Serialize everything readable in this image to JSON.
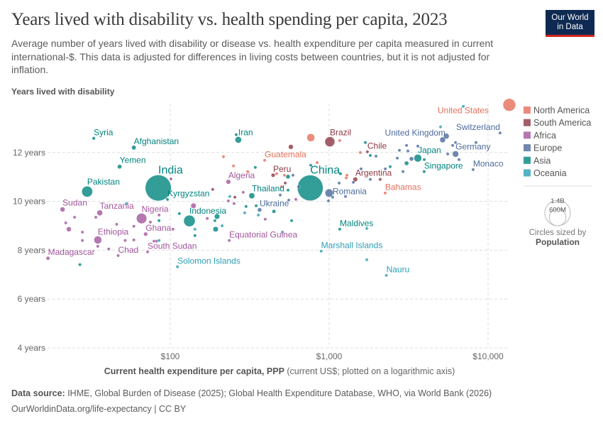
{
  "header": {
    "title": "Years lived with disability vs. health spending per capita, 2023",
    "subtitle": "Average number of years lived with disability or disease vs. health expenditure per capita measured in current international-$. This data is adjusted for differences in living costs between countries, but it is not adjusted for inflation.",
    "logo_line1": "Our World",
    "logo_line2": "in Data"
  },
  "footer": {
    "source_label": "Data source:",
    "source_text": " IHME, Global Burden of Disease (2025); Global Health Expenditure Database, WHO, via World Bank (2026)",
    "url_license": "OurWorldinData.org/life-expectancy | CC BY"
  },
  "chart_data": {
    "type": "scatter",
    "title": "Years lived with disability vs. health spending per capita, 2023",
    "ylabel": "Years lived with disability",
    "xlabel_bold": "Current health expenditure per capita, PPP",
    "xlabel_rest": " (current US$; plotted on a logarithmic axis)",
    "x_scale": "log",
    "xlim": [
      15,
      13500
    ],
    "ylim": [
      4,
      14
    ],
    "grid": true,
    "x_ticks": [
      {
        "value": 100,
        "label": "$100"
      },
      {
        "value": 1000,
        "label": "$1,000"
      },
      {
        "value": 10000,
        "label": "$10,000"
      }
    ],
    "y_ticks": [
      {
        "value": 4,
        "label": "4 years"
      },
      {
        "value": 6,
        "label": "6 years"
      },
      {
        "value": 8,
        "label": "8 years"
      },
      {
        "value": 10,
        "label": "10 years"
      },
      {
        "value": 12,
        "label": "12 years"
      }
    ],
    "legend_position": "right",
    "legend": [
      {
        "key": "NA",
        "label": "North America",
        "color": "#E56E5A"
      },
      {
        "key": "SA",
        "label": "South America",
        "color": "#8C3743"
      },
      {
        "key": "AF",
        "label": "Africa",
        "color": "#A2559C"
      },
      {
        "key": "EU",
        "label": "Europe",
        "color": "#4C6A9C"
      },
      {
        "key": "AS",
        "label": "Asia",
        "color": "#00847E"
      },
      {
        "key": "OC",
        "label": "Oceania",
        "color": "#2C9EB5"
      }
    ],
    "size_legend": {
      "large": "1.4B",
      "small": "600M",
      "caption": "Circles sized by",
      "variable": "Population",
      "large_value_m": 1400,
      "small_value_m": 600
    },
    "columns": [
      "entity",
      "region",
      "x",
      "y",
      "population_m"
    ],
    "points": [
      [
        "United States",
        "NA",
        13600,
        13.95,
        340
      ],
      [
        "Syria",
        "AS",
        33,
        12.58,
        23
      ],
      [
        "Afghanistan",
        "AS",
        59,
        12.2,
        42
      ],
      [
        "Yemen",
        "AS",
        48,
        11.42,
        40
      ],
      [
        "Pakistan",
        "AS",
        30,
        10.4,
        250
      ],
      [
        "India",
        "AS",
        84,
        10.55,
        1440
      ],
      [
        "Kyrgyzstan",
        "AS",
        96,
        10.08,
        7
      ],
      [
        "Sudan",
        "AF",
        21,
        9.67,
        50
      ],
      [
        "Tanzania",
        "AF",
        36,
        9.53,
        68
      ],
      [
        "Nigeria",
        "AF",
        66,
        9.3,
        228
      ],
      [
        "Ethiopia",
        "AF",
        35,
        8.42,
        128
      ],
      [
        "Ghana",
        "AF",
        70,
        8.66,
        34
      ],
      [
        "Chad",
        "AF",
        47,
        7.78,
        19
      ],
      [
        "South Sudan",
        "AF",
        72,
        7.93,
        11
      ],
      [
        "Madagascar",
        "AF",
        17,
        7.67,
        31
      ],
      [
        "Solomon Islands",
        "OC",
        111,
        7.32,
        0.8
      ],
      [
        "Indonesia",
        "AS",
        132,
        9.2,
        280
      ],
      [
        "Iran",
        "AS",
        268,
        12.52,
        90
      ],
      [
        "Algeria",
        "AF",
        232,
        10.8,
        46
      ],
      [
        "Thailand",
        "AS",
        326,
        10.23,
        72
      ],
      [
        "Ukraine",
        "EU",
        365,
        9.65,
        38
      ],
      [
        "Equatorial Guinea",
        "AF",
        235,
        8.4,
        1.9
      ],
      [
        "Guatemala",
        "NA",
        393,
        11.68,
        18
      ],
      [
        "Peru",
        "SA",
        444,
        11.07,
        34
      ],
      [
        "China",
        "AS",
        760,
        10.55,
        1410
      ],
      [
        "Brazil",
        "SA",
        1010,
        12.44,
        211
      ],
      [
        "Chile",
        "SA",
        1740,
        12.03,
        20
      ],
      [
        "Argentina",
        "SA",
        1460,
        10.9,
        46
      ],
      [
        "Romania",
        "EU",
        1052,
        10.17,
        19
      ],
      [
        "Bahamas",
        "NA",
        2250,
        10.34,
        0.4
      ],
      [
        "Maldives",
        "AS",
        1166,
        8.86,
        0.5
      ],
      [
        "Marshall Islands",
        "OC",
        890,
        7.96,
        0.04
      ],
      [
        "Nauru",
        "OC",
        2290,
        6.97,
        0.01
      ],
      [
        "United Kingdom",
        "EU",
        5176,
        12.52,
        69
      ],
      [
        "Switzerland",
        "EU",
        11900,
        12.8,
        9
      ],
      [
        "Germany",
        "EU",
        6240,
        11.94,
        84
      ],
      [
        "Japan",
        "AS",
        3614,
        11.77,
        124
      ],
      [
        "Singapore",
        "AS",
        3960,
        11.22,
        6
      ],
      [
        "Monaco",
        "EU",
        8050,
        11.3,
        0.04
      ],
      [
        "",
        "AF",
        101,
        10.92,
        10
      ],
      [
        "",
        "SA",
        185,
        10.49,
        12
      ],
      [
        "",
        "NA",
        216,
        11.83,
        5
      ],
      [
        "",
        "NA",
        250,
        11.45,
        5
      ],
      [
        "",
        "NA",
        307,
        11.22,
        5
      ],
      [
        "",
        "AS",
        343,
        11.39,
        5
      ],
      [
        "",
        "SA",
        574,
        12.23,
        50
      ],
      [
        "",
        "NA",
        467,
        11.13,
        5
      ],
      [
        "",
        "NA",
        523,
        11.07,
        5
      ],
      [
        "",
        "EU",
        592,
        11.07,
        5
      ],
      [
        "",
        "AS",
        551,
        11.01,
        40
      ],
      [
        "",
        "SA",
        529,
        10.75,
        5
      ],
      [
        "",
        "NA",
        502,
        10.6,
        5
      ],
      [
        "",
        "OC",
        237,
        10.2,
        3
      ],
      [
        "",
        "SA",
        255,
        10.17,
        5
      ],
      [
        "",
        "AF",
        288,
        10.37,
        5
      ],
      [
        "",
        "AF",
        232,
        10.02,
        20
      ],
      [
        "",
        "AF",
        252,
        9.91,
        5
      ],
      [
        "",
        "AS",
        551,
        10.46,
        5
      ],
      [
        "",
        "EU",
        492,
        10.26,
        5
      ],
      [
        "",
        "EU",
        557,
        10.05,
        5
      ],
      [
        "",
        "AF",
        617,
        10.08,
        5
      ],
      [
        "",
        "AS",
        300,
        9.79,
        5
      ],
      [
        "",
        "AS",
        347,
        9.82,
        5
      ],
      [
        "",
        "OC",
        294,
        9.53,
        1
      ],
      [
        "",
        "OC",
        358,
        9.44,
        1
      ],
      [
        "",
        "AS",
        449,
        9.59,
        30
      ],
      [
        "",
        "AF",
        396,
        9.27,
        5
      ],
      [
        "",
        "AS",
        580,
        9.21,
        5
      ],
      [
        "",
        "AF",
        140,
        9.82,
        60
      ],
      [
        "",
        "AS",
        114,
        9.5,
        5
      ],
      [
        "",
        "AS",
        197,
        9.38,
        60
      ],
      [
        "",
        "AS",
        191,
        9.21,
        10
      ],
      [
        "",
        "AF",
        171,
        9.3,
        5
      ],
      [
        "",
        "AS",
        193,
        8.86,
        60
      ],
      [
        "",
        "OC",
        212,
        9.0,
        1
      ],
      [
        "",
        "OC",
        143,
        8.86,
        1
      ],
      [
        "",
        "AS",
        143,
        8.6,
        5
      ],
      [
        "",
        "AF",
        85,
        9.44,
        5
      ],
      [
        "",
        "AS",
        85,
        9.21,
        5
      ],
      [
        "",
        "AF",
        75,
        9.15,
        5
      ],
      [
        "",
        "AF",
        79,
        8.37,
        10
      ],
      [
        "",
        "AF",
        82,
        8.37,
        5
      ],
      [
        "",
        "OC",
        85,
        8.4,
        1
      ],
      [
        "",
        "AF",
        104,
        8.86,
        5
      ],
      [
        "",
        "AF",
        59,
        8.98,
        5
      ],
      [
        "",
        "AF",
        59,
        8.42,
        5
      ],
      [
        "",
        "AF",
        52,
        8.4,
        5
      ],
      [
        "",
        "AF",
        46,
        9.06,
        5
      ],
      [
        "",
        "AF",
        34,
        9.35,
        5
      ],
      [
        "",
        "AF",
        25,
        9.35,
        5
      ],
      [
        "",
        "AF",
        22,
        9.12,
        5
      ],
      [
        "",
        "AF",
        23,
        8.86,
        50
      ],
      [
        "",
        "AF",
        28,
        8.74,
        5
      ],
      [
        "",
        "AF",
        28,
        8.4,
        5
      ],
      [
        "",
        "AF",
        35,
        8.16,
        5
      ],
      [
        "",
        "AF",
        41,
        8.05,
        5
      ],
      [
        "",
        "AS",
        27,
        7.41,
        5
      ],
      [
        "",
        "OC",
        53,
        9.91,
        1
      ],
      [
        "",
        "AS",
        260,
        12.73,
        5
      ],
      [
        "",
        "OC",
        6980,
        13.89,
        1
      ],
      [
        "",
        "NA",
        766,
        12.61,
        130
      ],
      [
        "",
        "NA",
        1166,
        12.49,
        5
      ],
      [
        "",
        "AS",
        1690,
        12.41,
        5
      ],
      [
        "",
        "NA",
        1571,
        12.0,
        5
      ],
      [
        "",
        "AS",
        1815,
        11.88,
        5
      ],
      [
        "",
        "EU",
        1972,
        11.85,
        5
      ],
      [
        "",
        "EU",
        2767,
        12.09,
        5
      ],
      [
        "",
        "EU",
        3069,
        12.29,
        5
      ],
      [
        "",
        "EU",
        3131,
        12.06,
        20
      ],
      [
        "",
        "EU",
        3614,
        12.26,
        5
      ],
      [
        "",
        "EU",
        2685,
        11.77,
        5
      ],
      [
        "",
        "EU",
        3296,
        11.74,
        40
      ],
      [
        "",
        "AS",
        3963,
        11.71,
        5
      ],
      [
        "",
        "AS",
        3069,
        11.56,
        40
      ],
      [
        "",
        "EU",
        2913,
        11.22,
        5
      ],
      [
        "",
        "AS",
        2421,
        11.42,
        5
      ],
      [
        "",
        "EU",
        2254,
        11.33,
        5
      ],
      [
        "",
        "EU",
        5458,
        12.67,
        68
      ],
      [
        "",
        "OC",
        5024,
        13.05,
        2
      ],
      [
        "",
        "EU",
        5984,
        12.29,
        5
      ],
      [
        "",
        "EU",
        6237,
        12.41,
        5
      ],
      [
        "",
        "EU",
        8395,
        12.41,
        5
      ],
      [
        "",
        "EU",
        5570,
        11.94,
        5
      ],
      [
        "",
        "EU",
        6561,
        11.71,
        5
      ],
      [
        "",
        "AS",
        766,
        11.48,
        5
      ],
      [
        "",
        "NA",
        840,
        11.59,
        5
      ],
      [
        "",
        "AS",
        1178,
        11.13,
        5
      ],
      [
        "",
        "NA",
        1294,
        11.07,
        5
      ],
      [
        "",
        "NA",
        1280,
        10.96,
        5
      ],
      [
        "",
        "EU",
        1588,
        11.33,
        5
      ],
      [
        "",
        "EU",
        1419,
        10.78,
        5
      ],
      [
        "",
        "EU",
        1815,
        10.9,
        5
      ],
      [
        "",
        "SA",
        2094,
        10.9,
        5
      ],
      [
        "",
        "EU",
        1155,
        10.75,
        5
      ],
      [
        "",
        "EU",
        1000,
        10.34,
        144
      ],
      [
        "",
        "EU",
        1267,
        10.2,
        5
      ],
      [
        "",
        "EU",
        990,
        10.02,
        5
      ],
      [
        "",
        "EU",
        643,
        10.6,
        5
      ],
      [
        "",
        "OC",
        508,
        8.74,
        1
      ],
      [
        "",
        "OC",
        1725,
        8.89,
        1
      ],
      [
        "",
        "OC",
        1725,
        7.61,
        1
      ]
    ]
  }
}
